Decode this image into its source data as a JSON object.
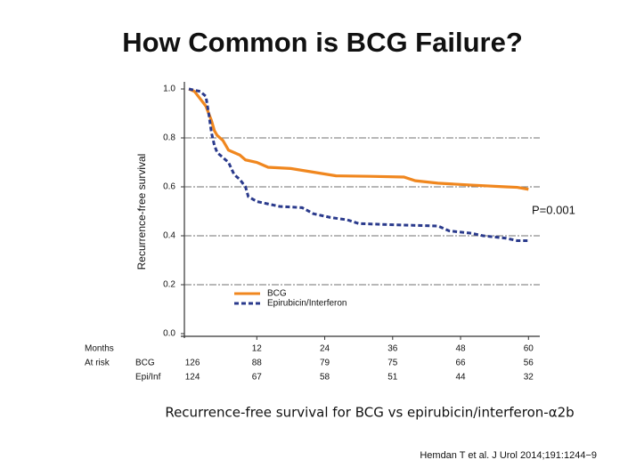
{
  "chart_data": {
    "type": "line",
    "title": "How Common is BCG Failure?",
    "ylabel": "Recurrence-free survival",
    "xlabel": "Months",
    "annotation": "P=0.001",
    "caption": "Recurrence-free survival for BCG vs epirubicin/interferon-α2b",
    "citation": "Hemdan T et al. J Urol 2014;191:1244−9",
    "xlim": [
      -1,
      62
    ],
    "ylim": [
      0,
      1
    ],
    "xticks": [
      12,
      24,
      36,
      48,
      60
    ],
    "yticks": [
      {
        "value": 0,
        "label": "0.0"
      },
      0.2,
      0.4,
      0.6,
      0.8,
      {
        "value": 1,
        "label": "1.0"
      }
    ],
    "grid": true,
    "series": [
      {
        "name": "BCG",
        "color": "#f0871f",
        "dash": false,
        "x": [
          0,
          1,
          3,
          4,
          4.5,
          5,
          6,
          7,
          8,
          9,
          10,
          12,
          14,
          18,
          22,
          26,
          32,
          38,
          40,
          44,
          50,
          56,
          58,
          60
        ],
        "values": [
          1.0,
          0.99,
          0.93,
          0.87,
          0.83,
          0.81,
          0.79,
          0.75,
          0.74,
          0.73,
          0.71,
          0.7,
          0.68,
          0.675,
          0.66,
          0.645,
          0.643,
          0.64,
          0.625,
          0.615,
          0.607,
          0.6,
          0.598,
          0.59
        ]
      },
      {
        "name": "Epirubicin/Interferon",
        "color": "#2a3a8c",
        "dash": true,
        "x": [
          0,
          2,
          3,
          3.5,
          4,
          4.5,
          5,
          6,
          7,
          8,
          9,
          10,
          10.5,
          12,
          14,
          16,
          20,
          22,
          25,
          28,
          30,
          36,
          44,
          46,
          50,
          52,
          56,
          58,
          60
        ],
        "values": [
          1.0,
          0.99,
          0.97,
          0.9,
          0.82,
          0.77,
          0.74,
          0.72,
          0.7,
          0.65,
          0.63,
          0.6,
          0.56,
          0.54,
          0.53,
          0.52,
          0.515,
          0.49,
          0.475,
          0.465,
          0.45,
          0.445,
          0.44,
          0.42,
          0.41,
          0.4,
          0.39,
          0.38,
          0.38
        ]
      }
    ],
    "at_risk": {
      "label": "At risk",
      "times": [
        0,
        12,
        24,
        36,
        48,
        60
      ],
      "rows": [
        {
          "name": "BCG",
          "values": [
            126,
            88,
            79,
            75,
            66,
            56
          ]
        },
        {
          "name": "Epi/Inf",
          "values": [
            124,
            67,
            58,
            51,
            44,
            32
          ]
        }
      ]
    }
  }
}
